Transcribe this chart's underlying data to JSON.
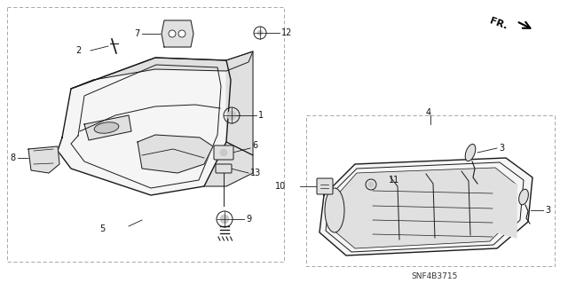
{
  "bg_color": "#ffffff",
  "fig_width": 6.4,
  "fig_height": 3.19,
  "dpi": 100,
  "diagram_code_text": "SNF4B3715",
  "fr_label": "FR.",
  "line_color": "#1a1a1a",
  "fill_light": "#f5f5f5",
  "fill_mid": "#e0e0e0",
  "fill_dark": "#c8c8c8",
  "label_fontsize": 7,
  "label_color": "#111111"
}
